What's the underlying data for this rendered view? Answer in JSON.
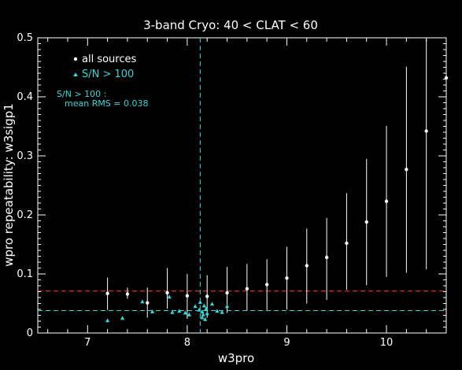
{
  "chart_data": {
    "type": "scatter",
    "title": "3-band Cryo:  40 < CLAT < 60",
    "xlabel": "w3pro",
    "ylabel": "wpro repeatability: w3sigp1",
    "xlim": [
      6.5,
      10.6
    ],
    "ylim": [
      0,
      0.5
    ],
    "x_ticks": [
      "7",
      "8",
      "9",
      "10"
    ],
    "x_tick_values": [
      7,
      8,
      9,
      10
    ],
    "y_ticks": [
      "0",
      "0.1",
      "0.2",
      "0.3",
      "0.4",
      "0.5"
    ],
    "y_tick_values": [
      0,
      0.1,
      0.2,
      0.3,
      0.4,
      0.5
    ],
    "grid": false,
    "legend_position": "top-left",
    "colors": {
      "background": "#000000",
      "axes": "#ffffff",
      "all_sources": "#ffffff",
      "sn_points": "#38d6d6",
      "red_line": "#ff3b3b",
      "cyan_line": "#38d6d6"
    },
    "series": [
      {
        "name": "all sources",
        "marker": "dot",
        "x": [
          7.2,
          7.4,
          7.6,
          7.8,
          8.0,
          8.2,
          8.4,
          8.6,
          8.8,
          9.0,
          9.2,
          9.4,
          9.6,
          9.8,
          10.0,
          10.2,
          10.4,
          10.6
        ],
        "y": [
          0.067,
          0.066,
          0.051,
          0.068,
          0.063,
          0.062,
          0.068,
          0.075,
          0.082,
          0.093,
          0.114,
          0.128,
          0.152,
          0.188,
          0.223,
          0.277,
          0.342,
          0.432
        ],
        "err_low": [
          0.039,
          0.058,
          0.026,
          0.041,
          0.024,
          0.026,
          0.034,
          0.038,
          0.039,
          0.04,
          0.05,
          0.056,
          0.073,
          0.081,
          0.095,
          0.102,
          0.108,
          0.15
        ],
        "err_high": [
          0.094,
          0.077,
          0.077,
          0.11,
          0.1,
          0.098,
          0.112,
          0.117,
          0.125,
          0.146,
          0.177,
          0.195,
          0.237,
          0.295,
          0.351,
          0.451,
          0.5,
          0.5
        ]
      },
      {
        "name": "S/N > 100",
        "marker": "triangle",
        "x": [
          7.2,
          7.35,
          7.55,
          7.65,
          7.82,
          7.85,
          7.92,
          7.98,
          8.02,
          8.08,
          8.12,
          8.13,
          8.15,
          8.15,
          8.16,
          8.17,
          8.18,
          8.19,
          8.2,
          8.25,
          8.3,
          8.35,
          8.4
        ],
        "y": [
          0.021,
          0.025,
          0.053,
          0.036,
          0.061,
          0.035,
          0.037,
          0.034,
          0.031,
          0.045,
          0.039,
          0.052,
          0.026,
          0.036,
          0.031,
          0.046,
          0.023,
          0.041,
          0.033,
          0.049,
          0.037,
          0.035,
          0.045
        ]
      }
    ],
    "reference_lines": [
      {
        "color": "red",
        "style": "dashed",
        "orientation": "horizontal",
        "value": 0.071
      },
      {
        "color": "cyan",
        "style": "dashed",
        "orientation": "horizontal",
        "value": 0.038
      },
      {
        "color": "cyan",
        "style": "dashed",
        "orientation": "vertical",
        "value": 8.13
      }
    ],
    "legend": {
      "all_sources": "all sources",
      "sn": "S/N > 100"
    },
    "annotation": {
      "line1": "S/N > 100 :",
      "line2": "mean RMS =  0.038"
    }
  }
}
